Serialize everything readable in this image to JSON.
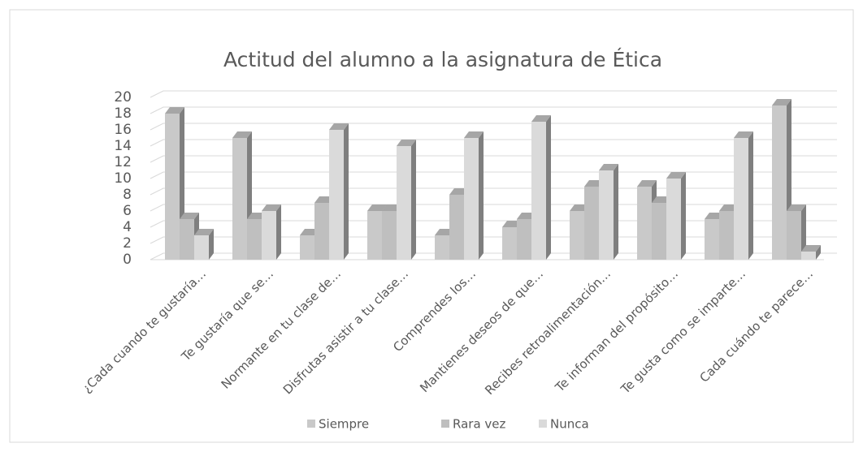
{
  "chart_data": {
    "type": "bar3d",
    "title": "Actitud del alumno a la asignatura de Ética",
    "categories": [
      "¿Cada cuando te gustaría…",
      "Te gustaría que se…",
      "Normante  en tu clase de…",
      "Disfrutas asistir a tu clase…",
      "Comprendes los…",
      "Mantienes deseos de que…",
      "Recibes retroalimentación…",
      "Te informan del propósito…",
      "Te gusta como se imparte…",
      "Cada cuándo te parece…"
    ],
    "series": [
      {
        "name": "Siempre",
        "color": "#c9c9c9",
        "values": [
          18,
          15,
          3,
          6,
          3,
          4,
          6,
          9,
          5,
          19
        ]
      },
      {
        "name": "Rara vez",
        "color": "#bfbfbf",
        "values": [
          5,
          5,
          7,
          6,
          8,
          5,
          9,
          7,
          6,
          6
        ]
      },
      {
        "name": "Nunca",
        "color": "#dadada",
        "values": [
          3,
          6,
          16,
          14,
          15,
          17,
          11,
          10,
          15,
          1
        ]
      }
    ],
    "ylim": [
      0,
      20
    ],
    "yticks": [
      0,
      2,
      4,
      6,
      8,
      10,
      12,
      14,
      16,
      18,
      20
    ],
    "grid": true,
    "legend": "bottom"
  }
}
